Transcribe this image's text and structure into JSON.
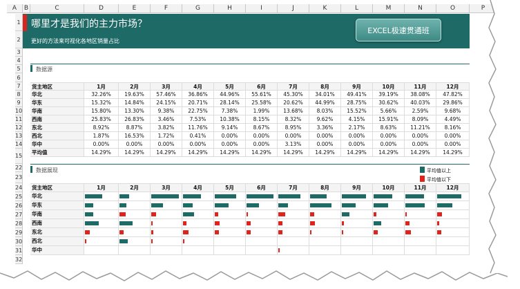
{
  "columns": [
    "A",
    "B",
    "C",
    "D",
    "E",
    "F",
    "G",
    "H",
    "I",
    "J",
    "K",
    "L",
    "M",
    "N",
    "O",
    "P"
  ],
  "row_numbers": [
    "1",
    "2",
    "3",
    "4",
    "5",
    "6",
    "7",
    "8",
    "9",
    "10",
    "11",
    "12",
    "13",
    "14",
    "15",
    "22",
    "23",
    "24",
    "25",
    "26",
    "27",
    "28",
    "29",
    "30",
    "31",
    "32"
  ],
  "header": {
    "title": "哪里才是我们的主力市场？",
    "subtitle": "更好的方法来可视化各地区销量占比",
    "button_label": "EXCEL极速贯通班",
    "banner_color": "#1e6a66",
    "accent_color": "#d7261f"
  },
  "section1": {
    "title": "数据源"
  },
  "table": {
    "corner_label": "货主地区",
    "months": [
      "1月",
      "2月",
      "3月",
      "4月",
      "5月",
      "6月",
      "7月",
      "8月",
      "9月",
      "10月",
      "11月",
      "12月"
    ],
    "rows": [
      {
        "region": "华北",
        "values": [
          "32.26%",
          "19.63%",
          "57.46%",
          "36.86%",
          "44.96%",
          "55.61%",
          "45.30%",
          "34.01%",
          "49.41%",
          "39.19%",
          "38.08%",
          "47.82%"
        ]
      },
      {
        "region": "华东",
        "values": [
          "15.32%",
          "14.84%",
          "24.15%",
          "20.71%",
          "28.14%",
          "25.58%",
          "20.62%",
          "44.99%",
          "28.75%",
          "30.62%",
          "40.03%",
          "29.86%"
        ]
      },
      {
        "region": "华南",
        "values": [
          "15.80%",
          "13.30%",
          "9.38%",
          "22.75%",
          "7.38%",
          "1.99%",
          "13.68%",
          "8.03%",
          "15.52%",
          "5.66%",
          "2.59%",
          "9.68%"
        ]
      },
      {
        "region": "西南",
        "values": [
          "25.83%",
          "26.83%",
          "3.46%",
          "7.53%",
          "10.38%",
          "8.15%",
          "8.32%",
          "9.62%",
          "4.15%",
          "15.91%",
          "8.09%",
          "4.49%"
        ]
      },
      {
        "region": "东北",
        "values": [
          "8.92%",
          "8.87%",
          "3.82%",
          "11.76%",
          "9.14%",
          "8.67%",
          "8.95%",
          "3.36%",
          "2.17%",
          "8.63%",
          "11.21%",
          "8.16%"
        ]
      },
      {
        "region": "西北",
        "values": [
          "1.87%",
          "16.53%",
          "1.72%",
          "0.41%",
          "0.00%",
          "0.00%",
          "0.00%",
          "0.00%",
          "0.00%",
          "0.00%",
          "0.00%",
          "0.00%"
        ]
      },
      {
        "region": "华中",
        "values": [
          "0.00%",
          "0.00%",
          "0.00%",
          "0.00%",
          "0.00%",
          "0.00%",
          "3.13%",
          "0.00%",
          "0.00%",
          "0.00%",
          "0.00%",
          "0.00%"
        ]
      },
      {
        "region": "平均值",
        "values": [
          "14.29%",
          "14.29%",
          "14.29%",
          "14.29%",
          "14.29%",
          "14.29%",
          "14.29%",
          "14.29%",
          "14.29%",
          "14.29%",
          "14.29%",
          "14.29%"
        ]
      }
    ]
  },
  "section2": {
    "title": "数据展现",
    "legend_above": "平均值以上",
    "legend_below": "平均值以下",
    "color_above": "#1e6a66",
    "color_below": "#e0231b",
    "average_pct": 14.29
  },
  "chart_data": {
    "type": "bar",
    "categories": [
      "1月",
      "2月",
      "3月",
      "4月",
      "5月",
      "6月",
      "7月",
      "8月",
      "9月",
      "10月",
      "11月",
      "12月"
    ],
    "series": [
      {
        "name": "华北",
        "values": [
          32.26,
          19.63,
          57.46,
          36.86,
          44.96,
          55.61,
          45.3,
          34.01,
          49.41,
          39.19,
          38.08,
          47.82
        ]
      },
      {
        "name": "华东",
        "values": [
          15.32,
          14.84,
          24.15,
          20.71,
          28.14,
          25.58,
          20.62,
          44.99,
          28.75,
          30.62,
          40.03,
          29.86
        ]
      },
      {
        "name": "华南",
        "values": [
          15.8,
          13.3,
          9.38,
          22.75,
          7.38,
          1.99,
          13.68,
          8.03,
          15.52,
          5.66,
          2.59,
          9.68
        ]
      },
      {
        "name": "西南",
        "values": [
          25.83,
          26.83,
          3.46,
          7.53,
          10.38,
          8.15,
          8.32,
          9.62,
          4.15,
          15.91,
          8.09,
          4.49
        ]
      },
      {
        "name": "东北",
        "values": [
          8.92,
          8.87,
          3.82,
          11.76,
          9.14,
          8.67,
          8.95,
          3.36,
          2.17,
          8.63,
          11.21,
          8.16
        ]
      },
      {
        "name": "西北",
        "values": [
          1.87,
          16.53,
          1.72,
          0.41,
          0,
          0,
          0,
          0,
          0,
          0,
          0,
          0
        ]
      },
      {
        "name": "华中",
        "values": [
          0,
          0,
          0,
          0,
          0,
          0,
          3.13,
          0,
          0,
          0,
          0,
          0
        ]
      }
    ],
    "xlabel": "",
    "ylabel": "",
    "ylim": [
      0,
      60
    ]
  }
}
